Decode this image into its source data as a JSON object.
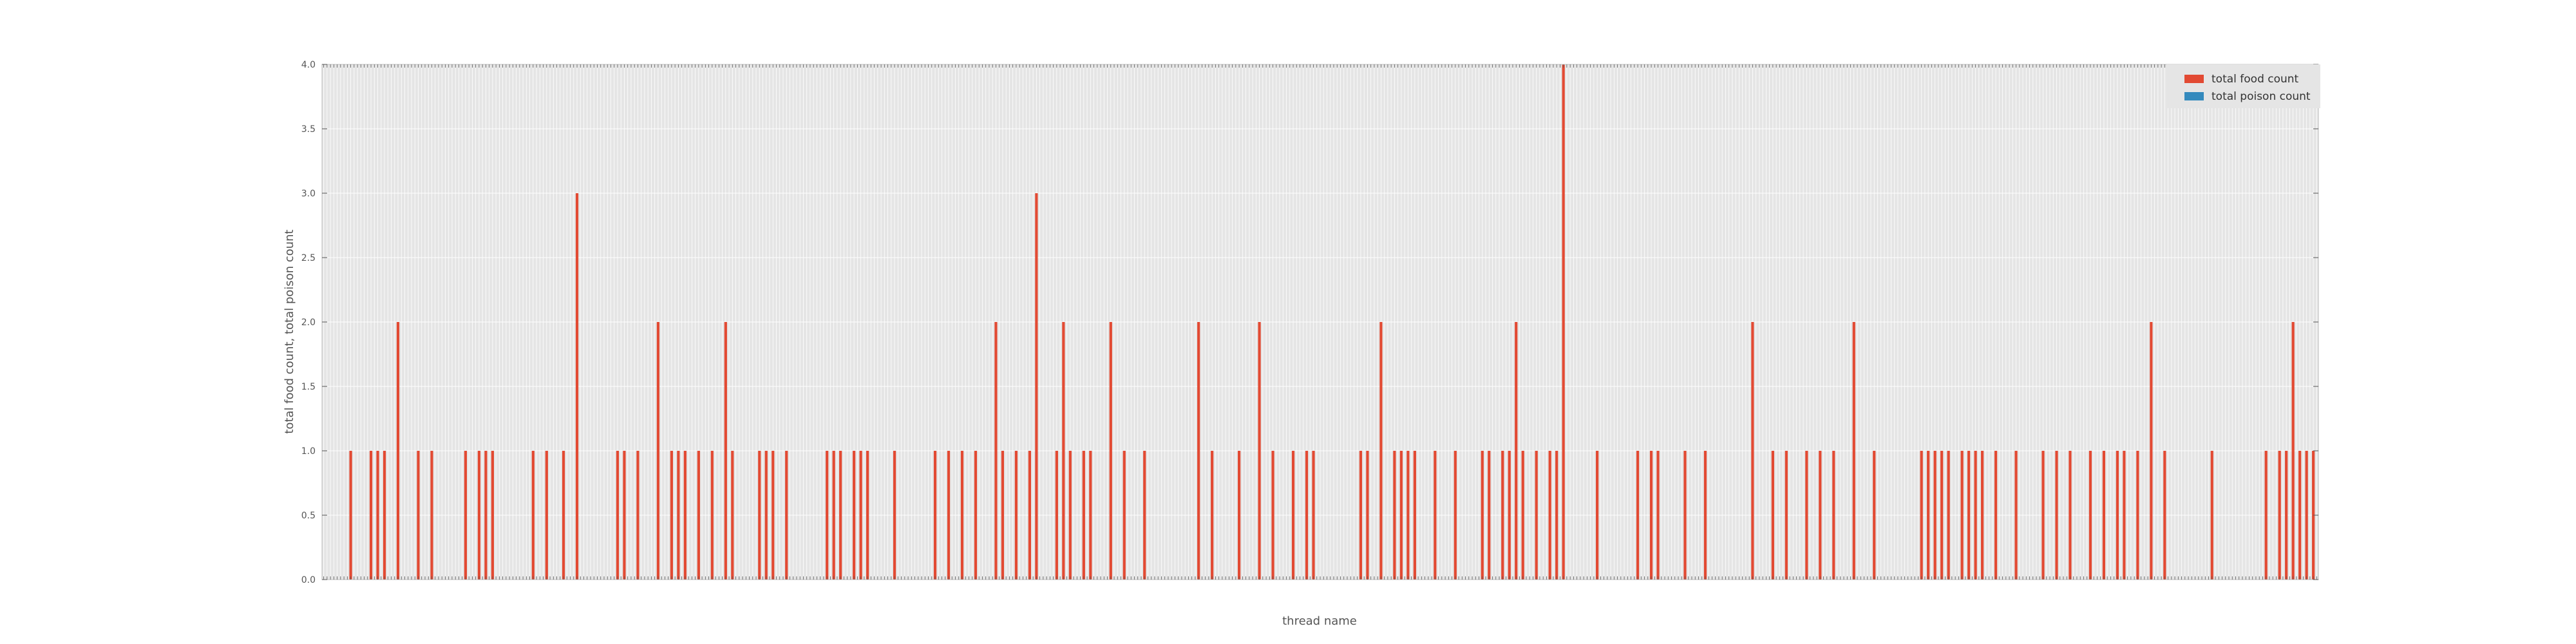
{
  "chart_data": {
    "type": "bar",
    "xlabel": "thread name",
    "ylabel": "total food count, total poison count",
    "ylim": [
      0,
      4
    ],
    "yticks": [
      "0.0",
      "0.5",
      "1.0",
      "1.5",
      "2.0",
      "2.5",
      "3.0",
      "3.5",
      "4.0"
    ],
    "grid": true,
    "legend_position": "top-right",
    "categories_note": "x tick labels are rotated and illegible in the source",
    "series": [
      {
        "name": "total food count",
        "color": "#e24a33",
        "points": [
          {
            "i": 8,
            "v": 1
          },
          {
            "i": 14,
            "v": 1
          },
          {
            "i": 16,
            "v": 1
          },
          {
            "i": 18,
            "v": 1
          },
          {
            "i": 22,
            "v": 2
          },
          {
            "i": 28,
            "v": 1
          },
          {
            "i": 32,
            "v": 1
          },
          {
            "i": 42,
            "v": 1
          },
          {
            "i": 46,
            "v": 1
          },
          {
            "i": 48,
            "v": 1
          },
          {
            "i": 50,
            "v": 1
          },
          {
            "i": 62,
            "v": 1
          },
          {
            "i": 66,
            "v": 1
          },
          {
            "i": 71,
            "v": 1
          },
          {
            "i": 75,
            "v": 3
          },
          {
            "i": 87,
            "v": 1
          },
          {
            "i": 89,
            "v": 1
          },
          {
            "i": 93,
            "v": 1
          },
          {
            "i": 99,
            "v": 2
          },
          {
            "i": 103,
            "v": 1
          },
          {
            "i": 105,
            "v": 1
          },
          {
            "i": 107,
            "v": 1
          },
          {
            "i": 111,
            "v": 1
          },
          {
            "i": 115,
            "v": 1
          },
          {
            "i": 119,
            "v": 2
          },
          {
            "i": 121,
            "v": 1
          },
          {
            "i": 129,
            "v": 1
          },
          {
            "i": 131,
            "v": 1
          },
          {
            "i": 133,
            "v": 1
          },
          {
            "i": 137,
            "v": 1
          },
          {
            "i": 149,
            "v": 1
          },
          {
            "i": 151,
            "v": 1
          },
          {
            "i": 153,
            "v": 1
          },
          {
            "i": 157,
            "v": 1
          },
          {
            "i": 159,
            "v": 1
          },
          {
            "i": 161,
            "v": 1
          },
          {
            "i": 169,
            "v": 1
          },
          {
            "i": 181,
            "v": 1
          },
          {
            "i": 185,
            "v": 1
          },
          {
            "i": 189,
            "v": 1
          },
          {
            "i": 193,
            "v": 1
          },
          {
            "i": 199,
            "v": 2
          },
          {
            "i": 201,
            "v": 1
          },
          {
            "i": 205,
            "v": 1
          },
          {
            "i": 209,
            "v": 1
          },
          {
            "i": 211,
            "v": 3
          },
          {
            "i": 217,
            "v": 1
          },
          {
            "i": 219,
            "v": 2
          },
          {
            "i": 221,
            "v": 1
          },
          {
            "i": 225,
            "v": 1
          },
          {
            "i": 227,
            "v": 1
          },
          {
            "i": 233,
            "v": 2
          },
          {
            "i": 237,
            "v": 1
          },
          {
            "i": 243,
            "v": 1
          },
          {
            "i": 259,
            "v": 2
          },
          {
            "i": 263,
            "v": 1
          },
          {
            "i": 271,
            "v": 1
          },
          {
            "i": 277,
            "v": 2
          },
          {
            "i": 281,
            "v": 1
          },
          {
            "i": 287,
            "v": 1
          },
          {
            "i": 291,
            "v": 1
          },
          {
            "i": 293,
            "v": 1
          },
          {
            "i": 307,
            "v": 1
          },
          {
            "i": 309,
            "v": 1
          },
          {
            "i": 313,
            "v": 2
          },
          {
            "i": 317,
            "v": 1
          },
          {
            "i": 319,
            "v": 1
          },
          {
            "i": 321,
            "v": 1
          },
          {
            "i": 323,
            "v": 1
          },
          {
            "i": 329,
            "v": 1
          },
          {
            "i": 335,
            "v": 1
          },
          {
            "i": 343,
            "v": 1
          },
          {
            "i": 345,
            "v": 1
          },
          {
            "i": 349,
            "v": 1
          },
          {
            "i": 351,
            "v": 1
          },
          {
            "i": 353,
            "v": 2
          },
          {
            "i": 355,
            "v": 1
          },
          {
            "i": 359,
            "v": 1
          },
          {
            "i": 363,
            "v": 1
          },
          {
            "i": 365,
            "v": 1
          },
          {
            "i": 367,
            "v": 4
          },
          {
            "i": 377,
            "v": 1
          },
          {
            "i": 389,
            "v": 1
          },
          {
            "i": 393,
            "v": 1
          },
          {
            "i": 395,
            "v": 1
          },
          {
            "i": 403,
            "v": 1
          },
          {
            "i": 409,
            "v": 1
          },
          {
            "i": 423,
            "v": 2
          },
          {
            "i": 429,
            "v": 1
          },
          {
            "i": 433,
            "v": 1
          },
          {
            "i": 439,
            "v": 1
          },
          {
            "i": 443,
            "v": 1
          },
          {
            "i": 447,
            "v": 1
          },
          {
            "i": 453,
            "v": 2
          },
          {
            "i": 459,
            "v": 1
          },
          {
            "i": 473,
            "v": 1
          },
          {
            "i": 475,
            "v": 1
          },
          {
            "i": 477,
            "v": 1
          },
          {
            "i": 479,
            "v": 1
          },
          {
            "i": 481,
            "v": 1
          },
          {
            "i": 485,
            "v": 1
          },
          {
            "i": 487,
            "v": 1
          },
          {
            "i": 489,
            "v": 1
          },
          {
            "i": 491,
            "v": 1
          },
          {
            "i": 495,
            "v": 1
          },
          {
            "i": 501,
            "v": 1
          },
          {
            "i": 509,
            "v": 1
          },
          {
            "i": 513,
            "v": 1
          },
          {
            "i": 517,
            "v": 1
          },
          {
            "i": 523,
            "v": 1
          },
          {
            "i": 527,
            "v": 1
          },
          {
            "i": 531,
            "v": 1
          },
          {
            "i": 533,
            "v": 1
          },
          {
            "i": 537,
            "v": 1
          },
          {
            "i": 541,
            "v": 2
          },
          {
            "i": 545,
            "v": 1
          },
          {
            "i": 559,
            "v": 1
          },
          {
            "i": 575,
            "v": 1
          },
          {
            "i": 579,
            "v": 1
          },
          {
            "i": 581,
            "v": 1
          },
          {
            "i": 583,
            "v": 2
          },
          {
            "i": 585,
            "v": 1
          },
          {
            "i": 587,
            "v": 1
          },
          {
            "i": 589,
            "v": 1
          }
        ]
      },
      {
        "name": "total poison count",
        "color": "#348abd",
        "points": []
      }
    ]
  }
}
